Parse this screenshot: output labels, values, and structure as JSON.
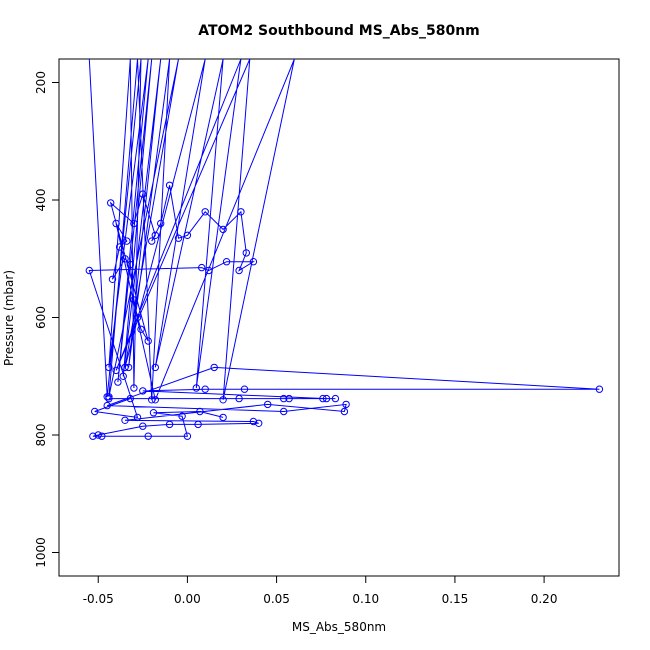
{
  "chart_data": {
    "type": "scatter",
    "title": "ATOM2 Southbound MS_Abs_580nm",
    "xlabel": "MS_Abs_580nm",
    "ylabel": "Pressure (mbar)",
    "xlim": [
      -0.072,
      0.242
    ],
    "ylim": [
      1040,
      160
    ],
    "y_reversed": true,
    "x_ticks": [
      -0.05,
      0.0,
      0.05,
      0.1,
      0.15,
      0.2
    ],
    "x_tick_labels": [
      "-0.05",
      "0.00",
      "0.05",
      "0.10",
      "0.15",
      "0.20"
    ],
    "y_ticks": [
      200,
      400,
      600,
      800,
      1000
    ],
    "y_tick_labels": [
      "200",
      "400",
      "600",
      "800",
      "1000"
    ],
    "grid": false,
    "legend": "none",
    "color": "#0000ff",
    "series": [
      {
        "mode": "lines+markers",
        "points": [
          [
            -0.055,
            160
          ],
          [
            -0.045,
            735
          ],
          [
            -0.026,
            160
          ],
          [
            -0.03,
            720
          ],
          [
            -0.032,
            160
          ],
          [
            -0.044,
            685
          ],
          [
            -0.022,
            160
          ],
          [
            -0.039,
            710
          ],
          [
            -0.02,
            160
          ],
          [
            -0.036,
            700
          ],
          [
            -0.015,
            160
          ],
          [
            -0.033,
            685
          ],
          [
            -0.01,
            160
          ],
          [
            -0.02,
            740
          ],
          [
            -0.028,
            160
          ],
          [
            -0.044,
            735
          ],
          [
            -0.005,
            160
          ],
          [
            -0.035,
            685
          ],
          [
            0.01,
            160
          ],
          [
            -0.018,
            685
          ],
          [
            0.02,
            160
          ],
          [
            0.005,
            720
          ],
          [
            0.03,
            160
          ],
          [
            -0.04,
            690
          ],
          [
            0.035,
            160
          ],
          [
            0.02,
            740
          ],
          [
            0.06,
            160
          ],
          [
            -0.018,
            740
          ],
          [
            -0.04,
            440
          ],
          [
            -0.034,
            470
          ],
          [
            -0.038,
            480
          ],
          [
            -0.042,
            535
          ],
          [
            -0.035,
            500
          ],
          [
            -0.032,
            510
          ],
          [
            -0.03,
            570
          ],
          [
            -0.028,
            600
          ],
          [
            -0.026,
            620
          ],
          [
            -0.022,
            640
          ],
          [
            -0.043,
            405
          ],
          [
            -0.03,
            440
          ],
          [
            -0.025,
            390
          ],
          [
            -0.018,
            460
          ],
          [
            -0.02,
            470
          ],
          [
            -0.015,
            440
          ],
          [
            -0.01,
            375
          ],
          [
            -0.005,
            465
          ],
          [
            0.0,
            460
          ],
          [
            0.01,
            420
          ],
          [
            0.02,
            450
          ],
          [
            0.03,
            420
          ],
          [
            0.033,
            490
          ],
          [
            0.029,
            520
          ],
          [
            0.037,
            505
          ],
          [
            0.022,
            505
          ],
          [
            0.012,
            520
          ],
          [
            0.008,
            515
          ],
          [
            -0.055,
            520
          ],
          [
            -0.028,
            770
          ],
          [
            -0.052,
            760
          ],
          [
            -0.032,
            738
          ],
          [
            0.054,
            738
          ],
          [
            0.057,
            738
          ],
          [
            0.076,
            738
          ],
          [
            -0.044,
            738
          ],
          [
            0.029,
            738
          ],
          [
            0.083,
            738
          ],
          [
            0.078,
            738
          ],
          [
            -0.025,
            725
          ],
          [
            0.01,
            722
          ],
          [
            0.032,
            722
          ],
          [
            0.231,
            722
          ],
          [
            0.015,
            685
          ],
          [
            -0.045,
            750
          ],
          [
            0.054,
            760
          ],
          [
            0.089,
            748
          ],
          [
            0.088,
            760
          ],
          [
            0.045,
            748
          ],
          [
            -0.035,
            775
          ],
          [
            0.037,
            777
          ],
          [
            0.04,
            780
          ],
          [
            0.006,
            782
          ],
          [
            -0.01,
            782
          ],
          [
            -0.025,
            785
          ],
          [
            -0.05,
            800
          ],
          [
            -0.053,
            802
          ],
          [
            -0.048,
            802
          ],
          [
            -0.022,
            802
          ],
          [
            0.0,
            802
          ],
          [
            -0.003,
            768
          ],
          [
            -0.019,
            762
          ],
          [
            0.007,
            760
          ],
          [
            0.02,
            770
          ]
        ]
      }
    ]
  }
}
